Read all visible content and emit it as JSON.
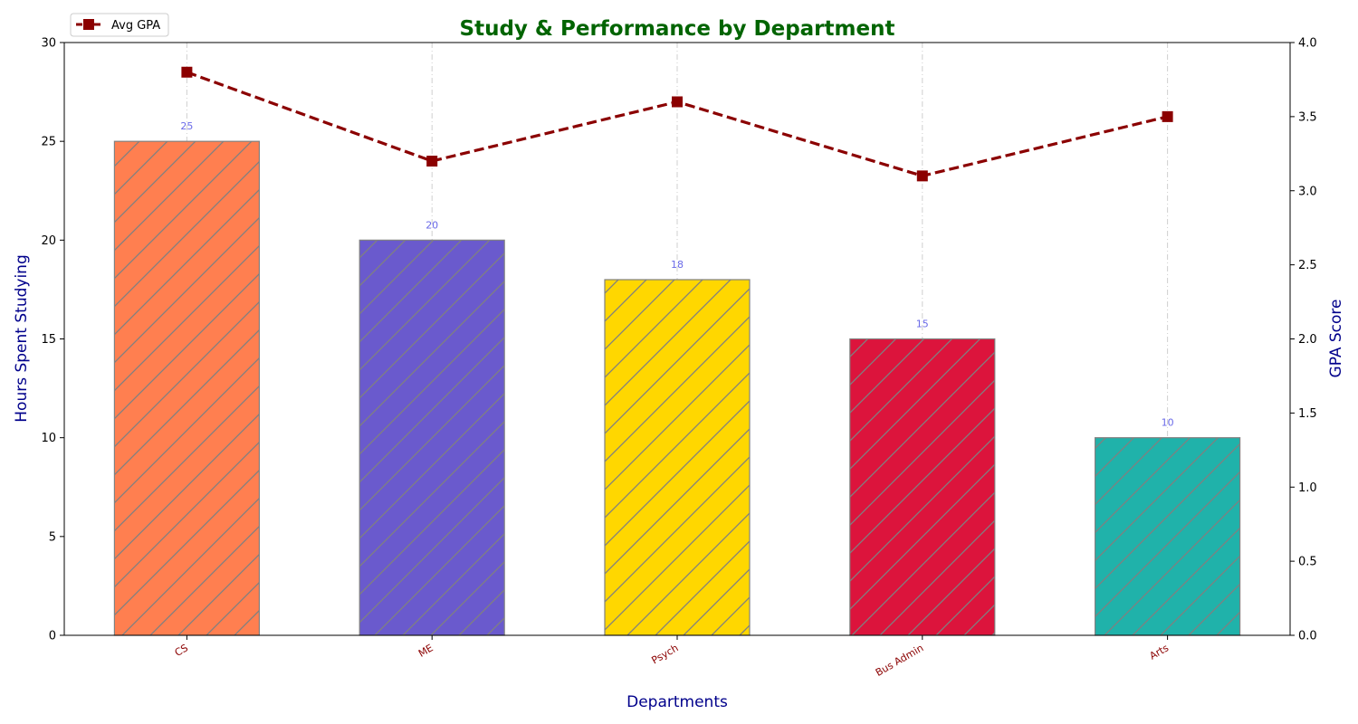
{
  "chart_data": {
    "type": "bar",
    "title": "Study & Performance by Department",
    "xlabel": "Departments",
    "ylabel": "Hours Spent Studying",
    "y2label": "GPA Score",
    "categories": [
      "CS",
      "ME",
      "Psych",
      "Bus Admin",
      "Arts"
    ],
    "ylim": [
      0,
      30
    ],
    "y2lim": [
      0,
      4.0
    ],
    "yticks": [
      "0",
      "5",
      "10",
      "15",
      "20",
      "25",
      "30"
    ],
    "y2ticks": [
      "0.0",
      "0.5",
      "1.0",
      "1.5",
      "2.0",
      "2.5",
      "3.0",
      "3.5",
      "4.0"
    ],
    "series": [
      {
        "type": "bar",
        "axis": "left",
        "values": [
          25,
          20,
          18,
          15,
          10
        ],
        "labels": [
          "25",
          "20",
          "18",
          "15",
          "10"
        ],
        "colors": [
          "#FF7F50",
          "#6A5ACD",
          "#FFD700",
          "#DC143C",
          "#20B2AA"
        ],
        "edge_color": "#808080",
        "hatch": "diagonal"
      },
      {
        "type": "line",
        "axis": "right",
        "name": "Avg GPA",
        "values": [
          3.8,
          3.2,
          3.6,
          3.1,
          3.5
        ],
        "color": "#8B0000",
        "linestyle": "dashed",
        "marker": "square"
      }
    ],
    "legend": {
      "position": "top-left",
      "entries": [
        "Avg GPA"
      ]
    },
    "grid": {
      "x": true,
      "y": false,
      "style": "dashdot"
    },
    "colors": {
      "title": "#006400",
      "axis_label": "#00008B",
      "category_label": "#8B0000",
      "value_label": "#6A6AE8"
    }
  }
}
